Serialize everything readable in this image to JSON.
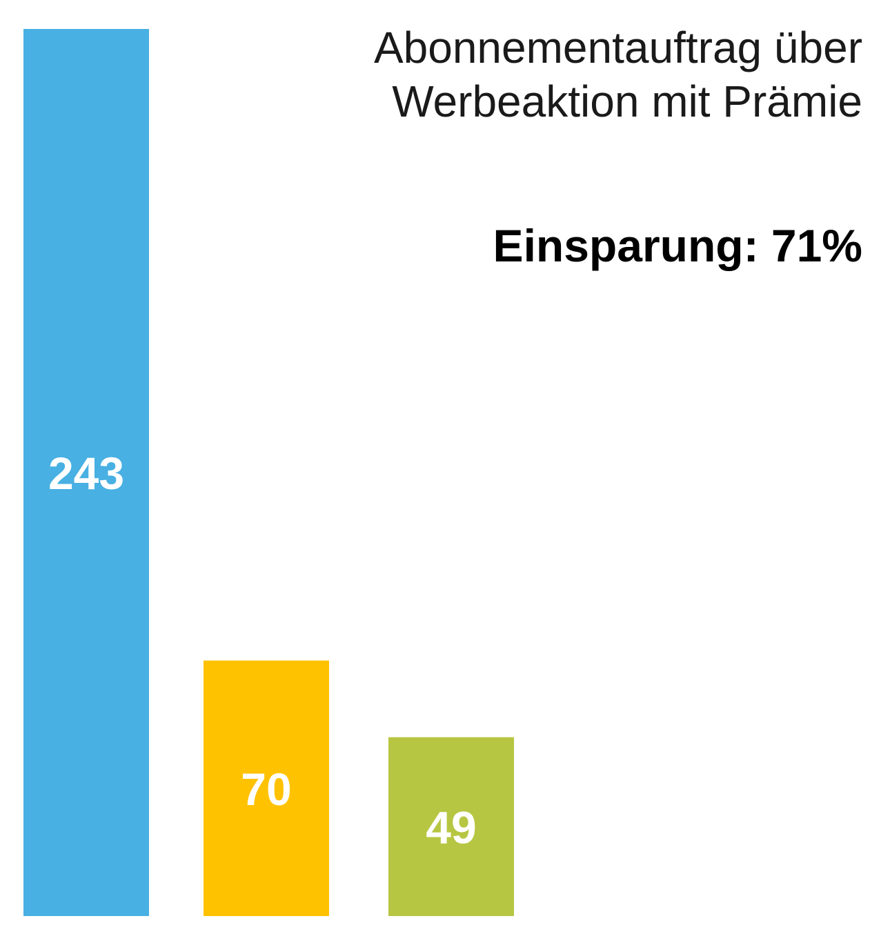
{
  "chart_data": {
    "type": "bar",
    "title": "Abonnementauftrag über Werbeaktion mit Prämie",
    "subtitle": "Einsparung: 71%",
    "categories": [
      "",
      "",
      ""
    ],
    "values": [
      243,
      70,
      49
    ],
    "colors": [
      "#48B0E2",
      "#FFC200",
      "#B7C642"
    ],
    "data_labels": [
      "243",
      "70",
      "49"
    ],
    "ylim": [
      0,
      243
    ],
    "grid": false,
    "axes_visible": false
  }
}
